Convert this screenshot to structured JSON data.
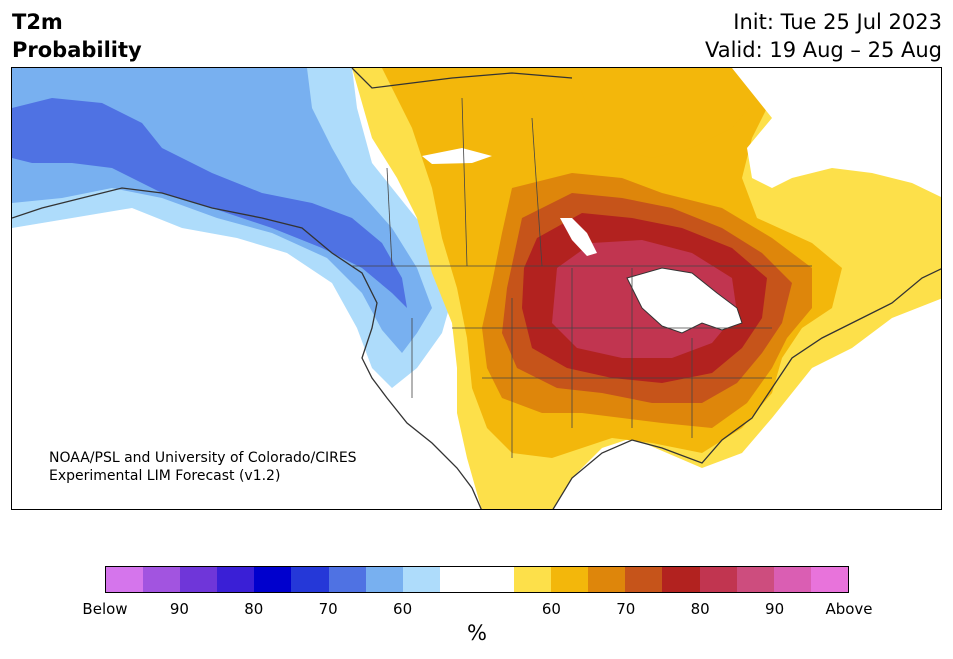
{
  "title": {
    "variable": "T2m",
    "subtitle": "Probability",
    "init": "Init: Tue 25 Jul 2023",
    "valid": "Valid: 19 Aug – 25 Aug"
  },
  "credit": {
    "line1": "NOAA/PSL and University of Colorado/CIRES",
    "line2": "Experimental LIM Forecast (v1.2)"
  },
  "colorbar": {
    "unit": "%",
    "colors": [
      "#d575ec",
      "#a254e0",
      "#6f36d9",
      "#3a1fd6",
      "#0000cd",
      "#2538d8",
      "#4f72e3",
      "#78b0f0",
      "#aedcfb",
      "#ffffff",
      "#ffffff",
      "#fde04a",
      "#f3b70b",
      "#de860b",
      "#c6541a",
      "#b2221f",
      "#c13550",
      "#cd4d7e",
      "#da5eb3",
      "#e873db"
    ],
    "labels": [
      "Below",
      "90",
      "80",
      "70",
      "60",
      "60",
      "70",
      "80",
      "90",
      "Above"
    ],
    "colors_map": {
      "below_strong": "#4f72e3",
      "below_weak": "#aedcfb",
      "above_weak": "#fde04a",
      "above_strong": "#c13550"
    }
  }
}
